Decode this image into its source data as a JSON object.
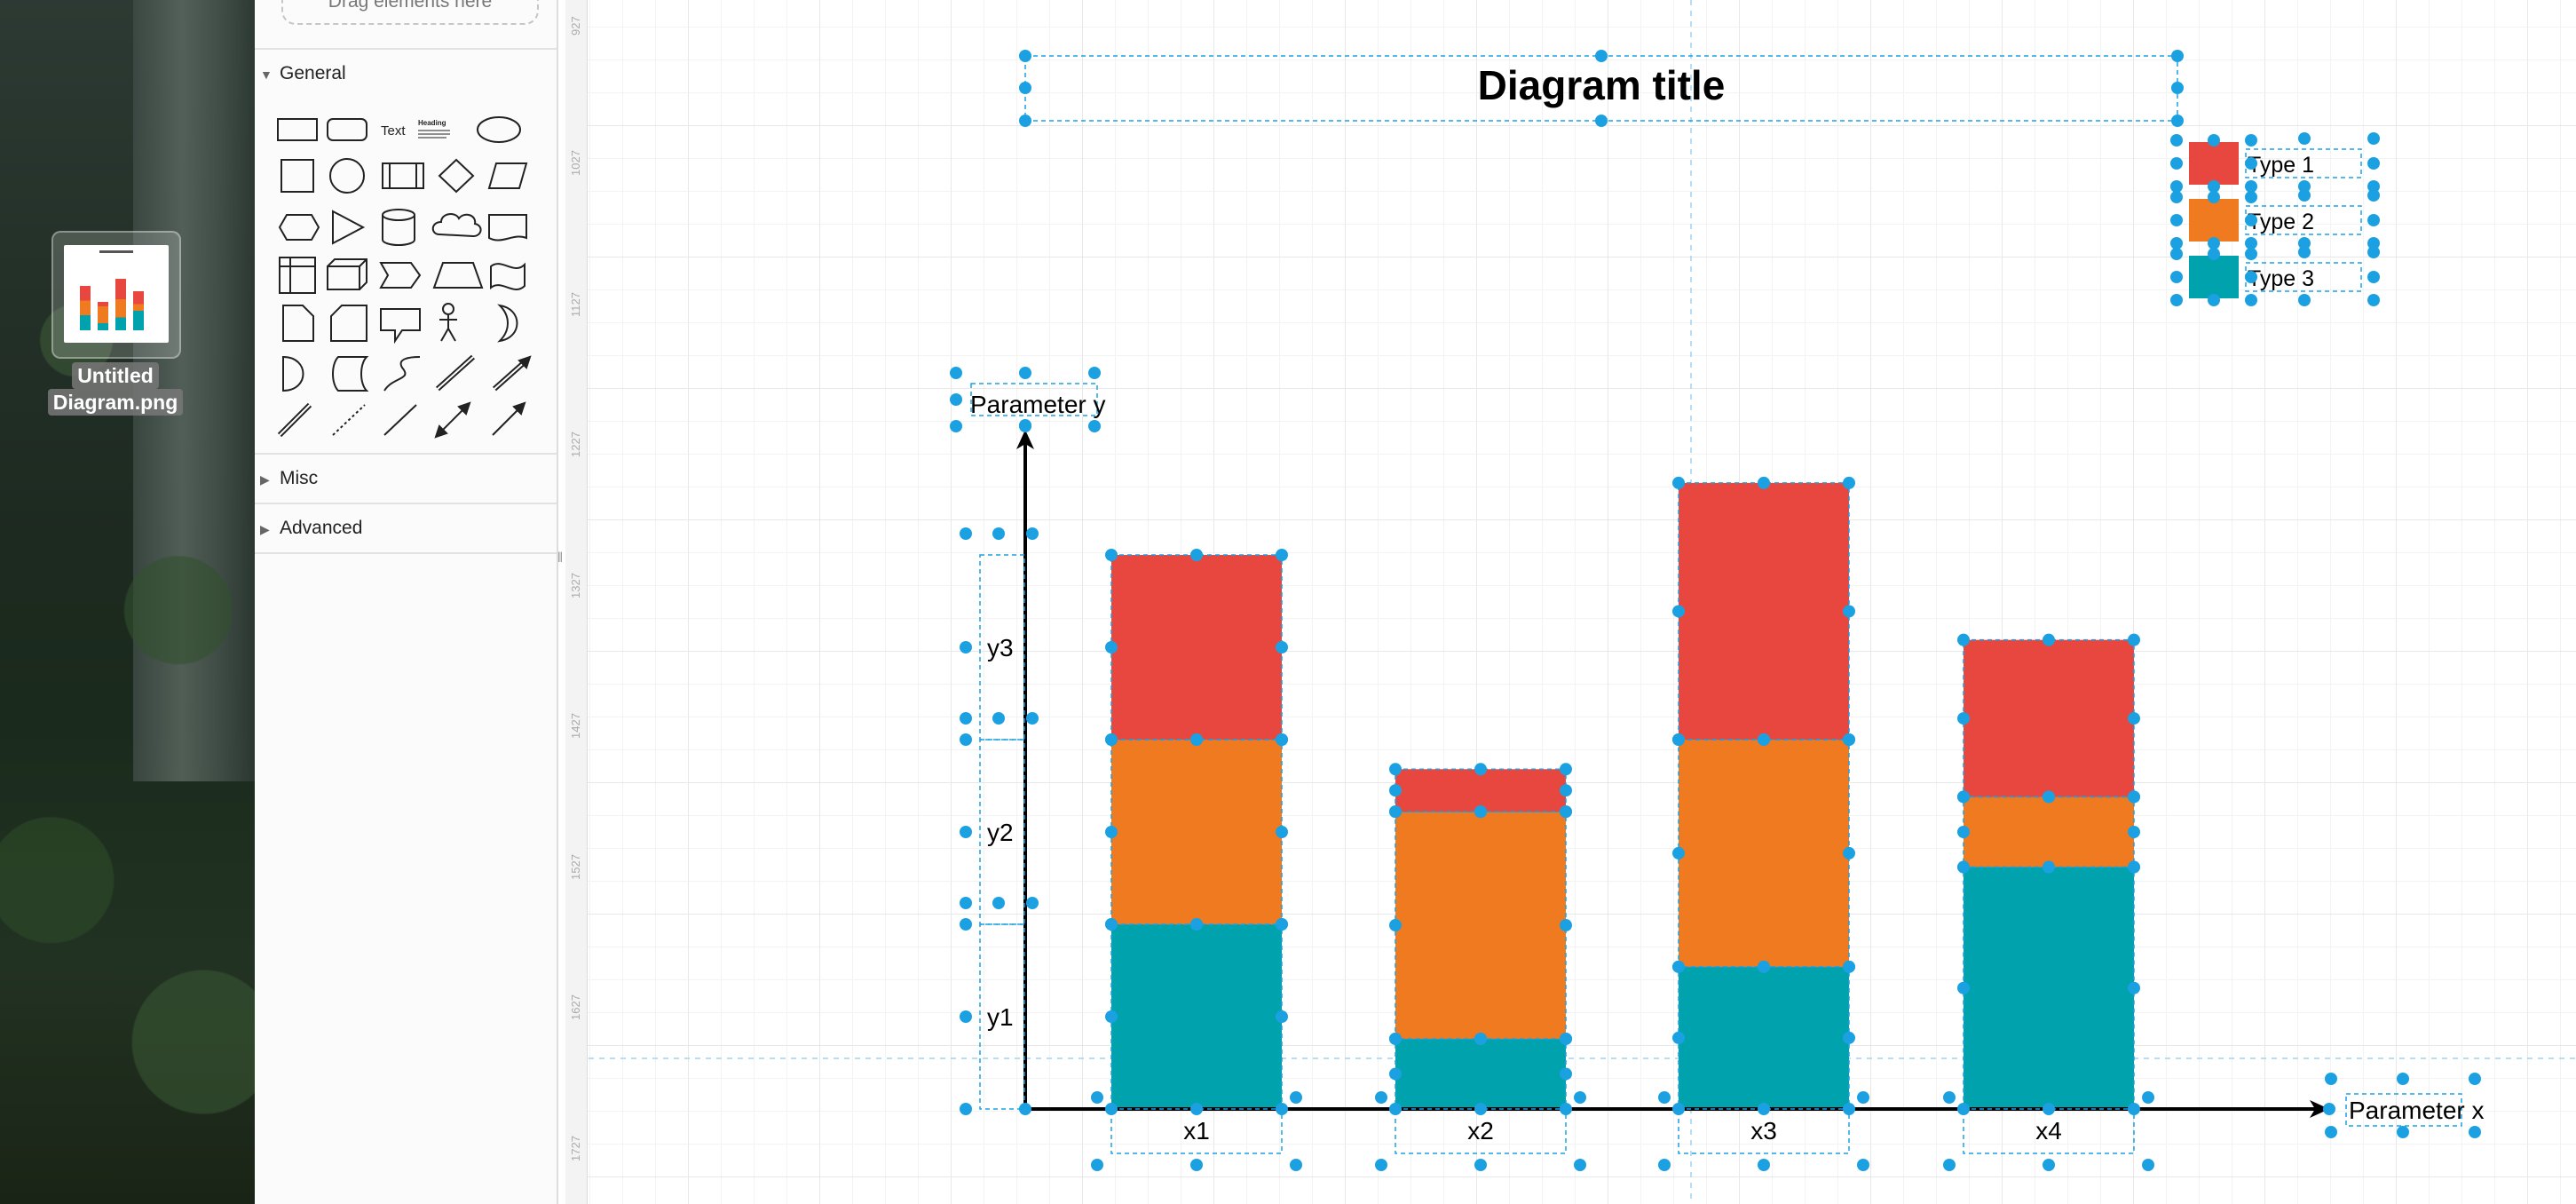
{
  "desktop": {
    "file_name_line1": "Untitled",
    "file_name_line2": "Diagram.png"
  },
  "sidebar": {
    "drop_hint": "Drag elements here",
    "sections": [
      {
        "label": "General",
        "expanded": true
      },
      {
        "label": "Misc",
        "expanded": false
      },
      {
        "label": "Advanced",
        "expanded": false
      }
    ],
    "shape_text_label": "Text",
    "shape_heading_label": "Heading"
  },
  "ruler": {
    "ticks": [
      "927",
      "1027",
      "1127",
      "1227",
      "1327",
      "1427",
      "1527",
      "1627",
      "1727"
    ]
  },
  "colors": {
    "type1": "#e8473f",
    "type2": "#f07a1f",
    "type3": "#00a2ad",
    "selection": "#1ba1e2",
    "axis": "#000000"
  },
  "chart_data": {
    "type": "bar",
    "stacked": true,
    "title": "Diagram title",
    "xlabel": "Parameter x",
    "ylabel": "Parameter y",
    "categories": [
      "x1",
      "x2",
      "x3",
      "x4"
    ],
    "ytick_labels": [
      "y1",
      "y2",
      "y3"
    ],
    "ylim": [
      0,
      3.5
    ],
    "series": [
      {
        "name": "Type 3",
        "color": "#00a2ad",
        "values": [
          1.0,
          0.38,
          0.77,
          1.31
        ]
      },
      {
        "name": "Type 2",
        "color": "#f07a1f",
        "values": [
          1.0,
          1.23,
          1.23,
          0.38
        ]
      },
      {
        "name": "Type 1",
        "color": "#e8473f",
        "values": [
          1.0,
          0.23,
          1.39,
          0.85
        ]
      }
    ],
    "legend": {
      "position": "top-right",
      "entries": [
        "Type 1",
        "Type 2",
        "Type 3"
      ]
    },
    "grid": true
  }
}
